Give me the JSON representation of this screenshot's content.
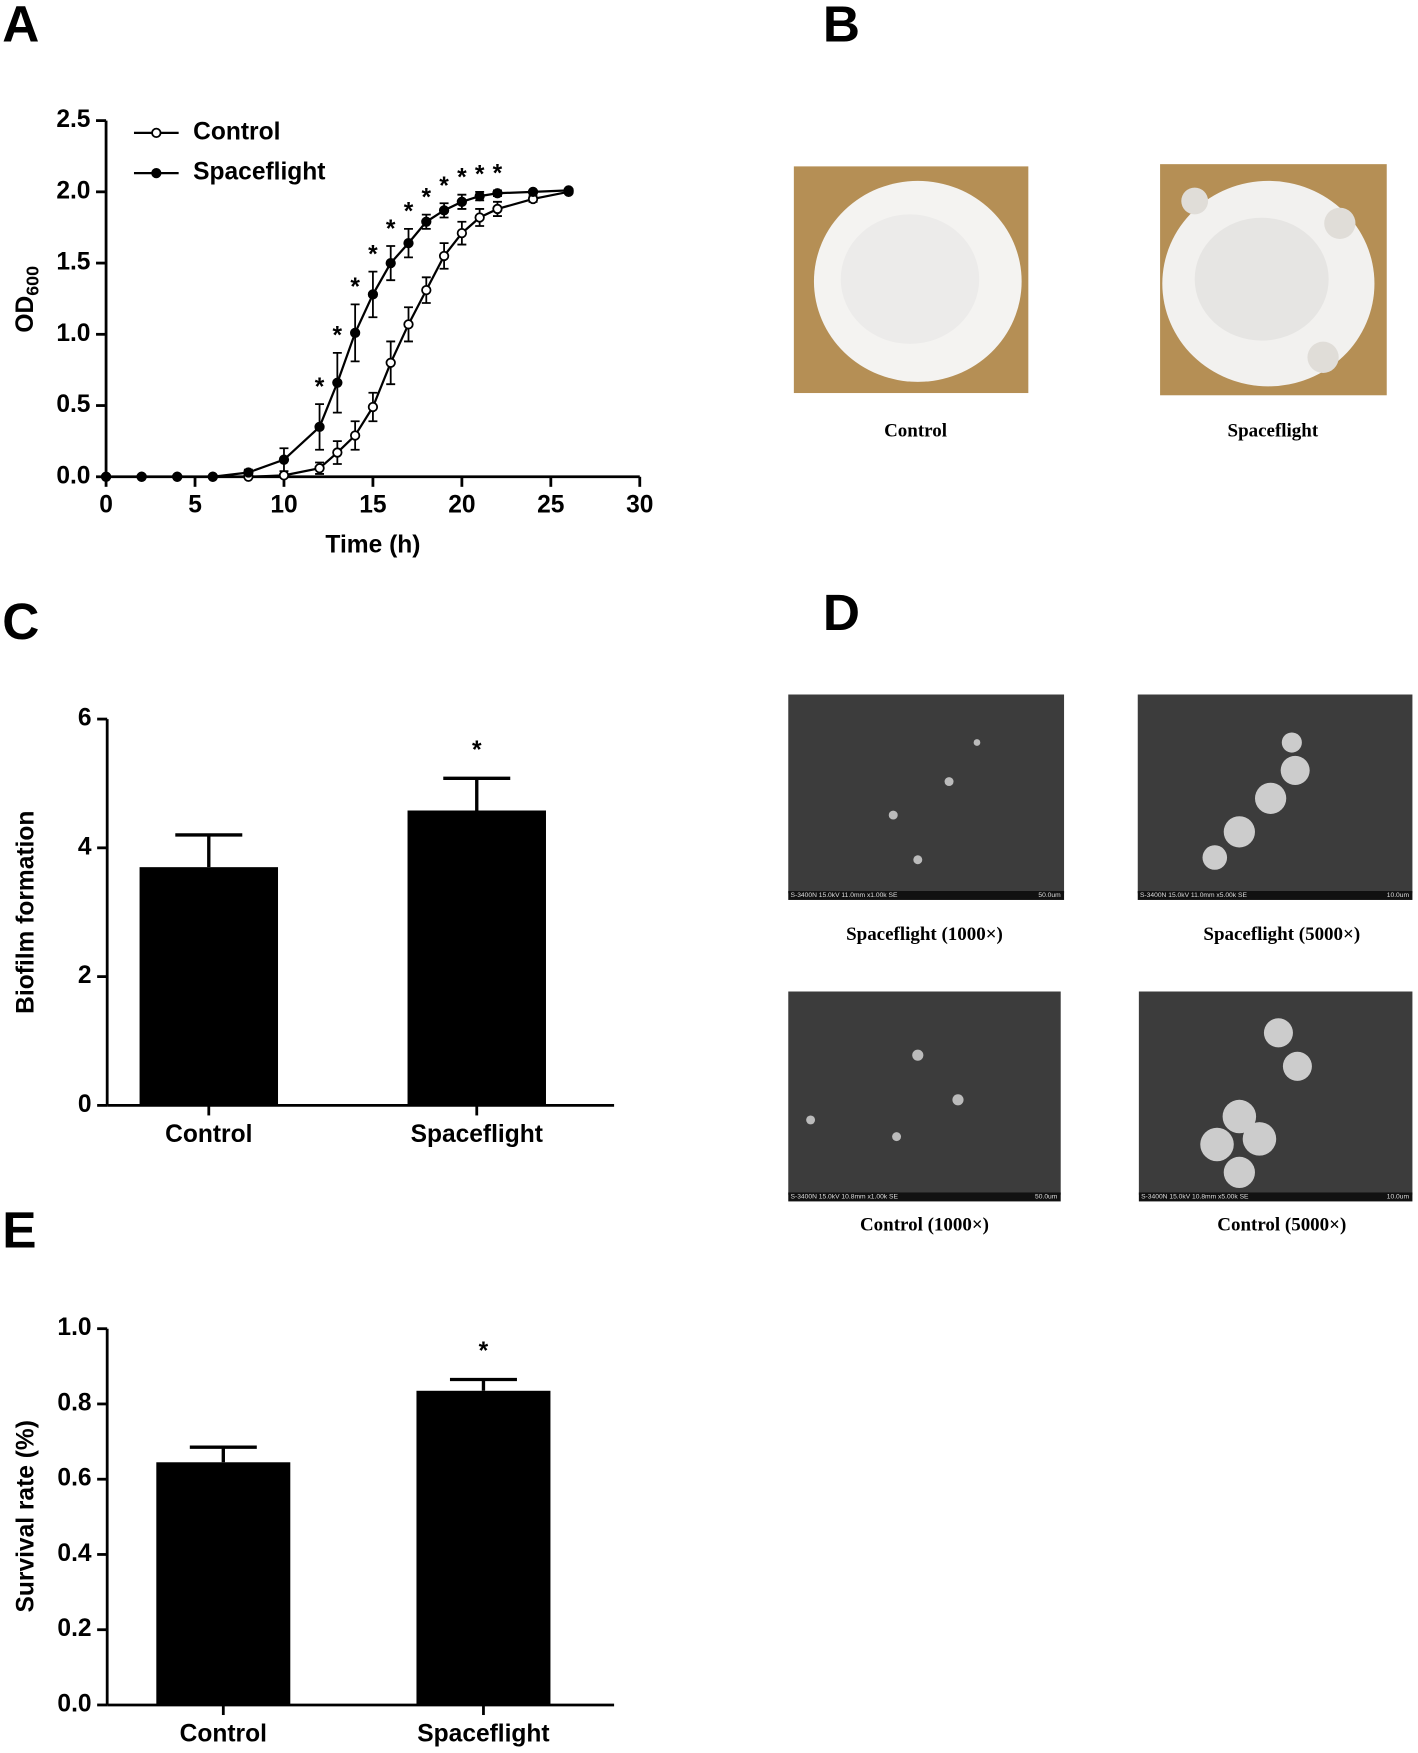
{
  "panel_labels": [
    "A",
    "B",
    "C",
    "D",
    "E"
  ],
  "colony_images": [
    {
      "caption": "Control"
    },
    {
      "caption": "Spaceflight"
    }
  ],
  "sem_images": [
    {
      "caption": "Spaceflight (1000×)",
      "info": "S-3400N 15.0kV 11.0mm x1.00k SE",
      "scale": "50.0um"
    },
    {
      "caption": "Spaceflight (5000×)",
      "info": "S-3400N 15.0kV 11.0mm x5.00k SE",
      "scale": "10.0um"
    },
    {
      "caption": "Control (1000×)",
      "info": "S-3400N 15.0kV 10.8mm x1.00k SE",
      "scale": "50.0um"
    },
    {
      "caption": "Control (5000×)",
      "info": "S-3400N 15.0kV 10.8mm x5.00k SE",
      "scale": "10.0um"
    }
  ],
  "chart_data": [
    {
      "type": "line",
      "xlabel": "Time (h)",
      "ylabel": "OD",
      "ylabel_sub": "600",
      "x": [
        0,
        2,
        4,
        6,
        8,
        10,
        12,
        13,
        14,
        15,
        16,
        17,
        18,
        19,
        20,
        21,
        22,
        24,
        26
      ],
      "series": [
        {
          "name": "Control",
          "color": "#000000",
          "marker": "open",
          "values": [
            0,
            0,
            0,
            0,
            0,
            0.01,
            0.06,
            0.17,
            0.29,
            0.49,
            0.8,
            1.07,
            1.31,
            1.55,
            1.71,
            1.82,
            1.88,
            1.95,
            2.0
          ],
          "errors": [
            0,
            0,
            0,
            0,
            0,
            0.01,
            0.04,
            0.08,
            0.1,
            0.1,
            0.15,
            0.12,
            0.09,
            0.09,
            0.08,
            0.06,
            0.05,
            0.02,
            0.01
          ]
        },
        {
          "name": "Spaceflight",
          "color": "#000000",
          "marker": "filled",
          "values": [
            0,
            0,
            0,
            0,
            0.03,
            0.12,
            0.35,
            0.66,
            1.01,
            1.28,
            1.5,
            1.64,
            1.79,
            1.87,
            1.93,
            1.97,
            1.99,
            2.0,
            2.01
          ],
          "errors": [
            0,
            0,
            0,
            0,
            0.02,
            0.08,
            0.16,
            0.21,
            0.2,
            0.16,
            0.12,
            0.1,
            0.05,
            0.05,
            0.05,
            0.03,
            0.02,
            0.01,
            0.01
          ]
        }
      ],
      "significance": [
        null,
        null,
        null,
        null,
        null,
        null,
        "*",
        "*",
        "*",
        "*",
        "*",
        "*",
        "*",
        "*",
        "*",
        "*",
        "*",
        null,
        null
      ],
      "xlim": [
        0,
        30
      ],
      "xticks": [
        0,
        5,
        10,
        15,
        20,
        25,
        30
      ],
      "ylim": [
        0,
        2.5
      ],
      "yticks": [
        {
          "value": 0,
          "label": "0.0"
        },
        0.5,
        {
          "value": 1,
          "label": "1.0"
        },
        1.5,
        {
          "value": 2,
          "label": "2.0"
        },
        2.5
      ],
      "legend": "upper left",
      "grid": false
    },
    {
      "type": "bar",
      "ylabel": "Biofilm formation",
      "categories": [
        "Control",
        "Spaceflight"
      ],
      "values": [
        3.7,
        4.58
      ],
      "errors": [
        0.5,
        0.5
      ],
      "significance": [
        null,
        "*"
      ],
      "color": "#000000",
      "ylim": [
        0,
        6
      ],
      "yticks": [
        0,
        2,
        4,
        6
      ],
      "grid": false
    },
    {
      "type": "bar",
      "ylabel": "Survival rate (%)",
      "categories": [
        "Control",
        "Spaceflight"
      ],
      "values": [
        0.645,
        0.835
      ],
      "errors": [
        0.04,
        0.03
      ],
      "significance": [
        null,
        "*"
      ],
      "color": "#000000",
      "ylim": [
        0,
        1
      ],
      "yticks": [
        {
          "value": 0,
          "label": "0.0"
        },
        0.2,
        0.4,
        0.6,
        0.8,
        {
          "value": 1,
          "label": "1.0"
        }
      ],
      "grid": false
    }
  ]
}
